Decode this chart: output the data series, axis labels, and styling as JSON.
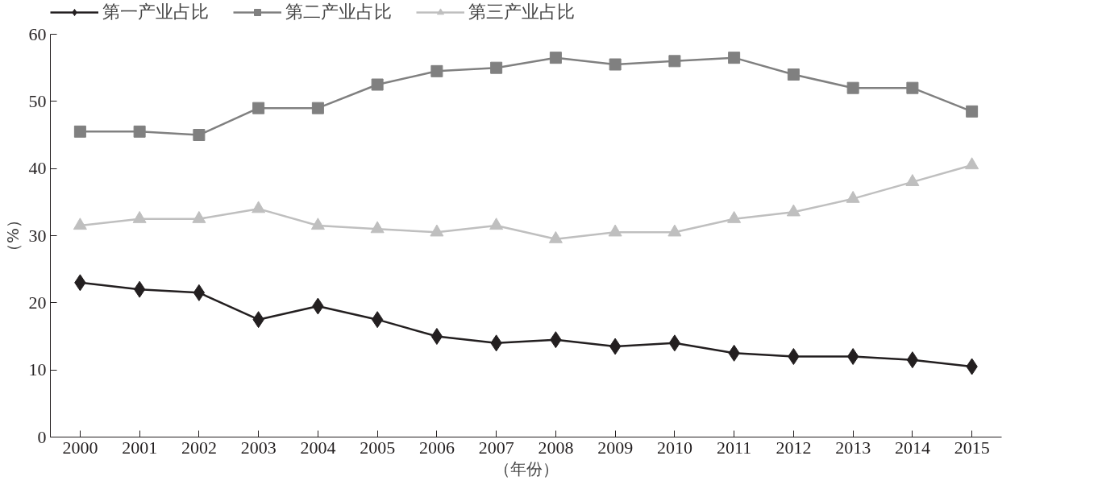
{
  "chart_data": {
    "type": "line",
    "ylabel": "（%）",
    "xlabel": "（年份）",
    "categories": [
      "2000",
      "2001",
      "2002",
      "2003",
      "2004",
      "2005",
      "2006",
      "2007",
      "2008",
      "2009",
      "2010",
      "2011",
      "2012",
      "2013",
      "2014",
      "2015"
    ],
    "series": [
      {
        "name": "第一产业占比",
        "color": "#231f20",
        "marker": "diamond",
        "values": [
          23,
          22,
          21.5,
          17.5,
          19.5,
          17.5,
          15,
          14,
          14.5,
          13.5,
          14,
          12.5,
          12,
          12,
          11.5,
          10.5
        ]
      },
      {
        "name": "第二产业占比",
        "color": "#808080",
        "marker": "square",
        "values": [
          45.5,
          45.5,
          45,
          49,
          49,
          52.5,
          54.5,
          55,
          56.5,
          55.5,
          56,
          56.5,
          54,
          52,
          52,
          48.5
        ]
      },
      {
        "name": "第三产业占比",
        "color": "#bfbfbf",
        "marker": "triangle",
        "values": [
          31.5,
          32.5,
          32.5,
          34,
          31.5,
          31,
          30.5,
          31.5,
          29.5,
          30.5,
          30.5,
          32.5,
          33.5,
          35.5,
          38,
          40.5
        ]
      }
    ],
    "ylim": [
      0,
      60
    ],
    "yticks": [
      0,
      10,
      20,
      30,
      40,
      50,
      60
    ],
    "grid": false,
    "legend": "top",
    "line_style": "solid"
  }
}
